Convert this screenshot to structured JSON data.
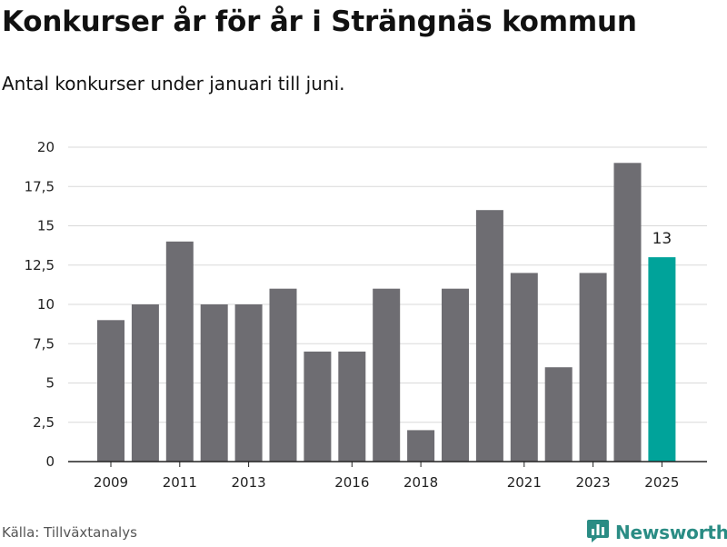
{
  "header": {
    "title": "Konkurser år för år i Strängnäs kommun",
    "subtitle": "Antal konkurser under januari till juni."
  },
  "footer": {
    "source": "Källa: Tillväxtanalys",
    "brand": "Newsworthy",
    "brand_icon": "bar-chart-logo-icon"
  },
  "colors": {
    "bar": "#6e6d72",
    "highlight": "#00a39a",
    "grid": "#d9d9d9",
    "axis": "#222222",
    "brand": "#2a8c84"
  },
  "chart_data": {
    "type": "bar",
    "categories": [
      "2009",
      "2010",
      "2011",
      "2012",
      "2013",
      "2014",
      "2015",
      "2016",
      "2017",
      "2018",
      "2019",
      "2020",
      "2021",
      "2022",
      "2023",
      "2024",
      "2025"
    ],
    "values": [
      9,
      10,
      14,
      10,
      10,
      11,
      7,
      7,
      11,
      2,
      11,
      16,
      12,
      6,
      12,
      19,
      13
    ],
    "highlight_index": 16,
    "highlight_label": "13",
    "ylim": [
      0,
      20
    ],
    "y_ticks": [
      0,
      2.5,
      5,
      7.5,
      10,
      12.5,
      15,
      17.5,
      20
    ],
    "y_tick_labels": [
      "0",
      "2,5",
      "5",
      "7,5",
      "10",
      "12,5",
      "15",
      "17,5",
      "20"
    ],
    "x_tick_labels": [
      "2009",
      "2011",
      "2013",
      "2016",
      "2018",
      "2021",
      "2023",
      "2025"
    ],
    "grid": true,
    "xlabel": "",
    "ylabel": ""
  }
}
